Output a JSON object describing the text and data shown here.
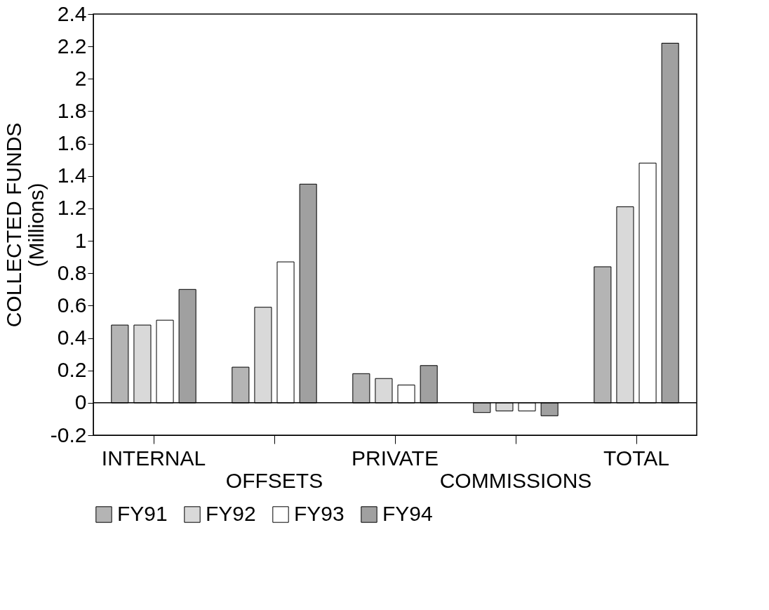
{
  "chart_data": {
    "type": "bar",
    "ylabel": "COLLECTED FUNDS\n(Millions)",
    "categories": [
      "INTERNAL",
      "OFFSETS",
      "PRIVATE",
      "COMMISSIONS",
      "TOTAL"
    ],
    "series": [
      {
        "name": "FY91",
        "color": "#b4b4b4",
        "values": [
          0.48,
          0.22,
          0.18,
          -0.06,
          0.84
        ]
      },
      {
        "name": "FY92",
        "color": "#d9d9d9",
        "values": [
          0.48,
          0.59,
          0.15,
          -0.05,
          1.21
        ]
      },
      {
        "name": "FY93",
        "color": "#ffffff",
        "values": [
          0.51,
          0.87,
          0.11,
          -0.05,
          1.48
        ]
      },
      {
        "name": "FY94",
        "color": "#a0a0a0",
        "values": [
          0.7,
          1.35,
          0.23,
          -0.08,
          2.22
        ]
      }
    ],
    "ylim": [
      -0.2,
      2.4
    ],
    "yticks": [
      -0.2,
      0,
      0.2,
      0.4,
      0.6,
      0.8,
      1,
      1.2,
      1.4,
      1.6,
      1.8,
      2,
      2.2,
      2.4
    ],
    "ref_lines": [
      {
        "axis": "y",
        "value": 0
      }
    ],
    "grid": false,
    "legend": "bottom"
  }
}
